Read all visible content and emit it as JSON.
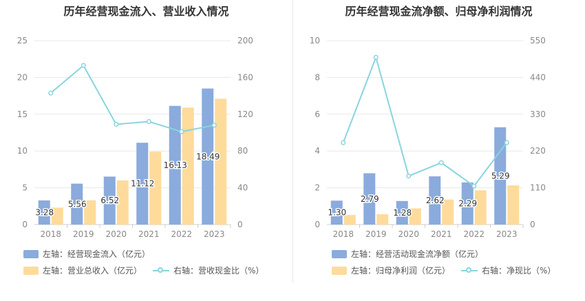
{
  "colors": {
    "blue": "#8aabdc",
    "yellow": "#fedb9b",
    "line": "#88d4de",
    "grid": "#e8e8e8",
    "axis_text": "#888888",
    "label_text": "#333333"
  },
  "left": {
    "title": "历年经营现金流入、营业收入情况",
    "legend": {
      "bar1": "左轴：经营现金流入（亿元）",
      "bar2": "左轴：营业总收入（亿元）",
      "line": "右轴：营收现金比（%）"
    },
    "chart_data": {
      "type": "bar",
      "categories": [
        "2018",
        "2019",
        "2020",
        "2021",
        "2022",
        "2023"
      ],
      "series": [
        {
          "name": "左轴：经营现金流入（亿元）",
          "axis": "left",
          "values": [
            3.28,
            5.56,
            6.52,
            11.12,
            16.13,
            18.49
          ],
          "labels": [
            "3.28",
            "5.56",
            "6.52",
            "11.12",
            "16.13",
            "18.49"
          ]
        },
        {
          "name": "左轴：营业总收入（亿元）",
          "axis": "left",
          "values": [
            2.3,
            3.3,
            6.0,
            9.9,
            15.9,
            17.1
          ]
        },
        {
          "name": "右轴：营收现金比（%）",
          "axis": "right",
          "type": "line",
          "values": [
            143,
            173,
            109,
            112,
            101,
            108
          ]
        }
      ],
      "yleft": {
        "min": 0,
        "max": 25,
        "ticks": [
          0,
          5,
          10,
          15,
          20,
          25
        ]
      },
      "yright": {
        "min": 0,
        "max": 200,
        "ticks": [
          0,
          40,
          80,
          120,
          160,
          200
        ]
      }
    }
  },
  "right": {
    "title": "历年经营现金流净额、归母净利润情况",
    "legend": {
      "bar1": "左轴：经营活动现金流净额（亿元）",
      "bar2": "左轴：归母净利润（亿元）",
      "line": "右轴：净现比（%）"
    },
    "chart_data": {
      "type": "bar",
      "categories": [
        "2018",
        "2019",
        "2020",
        "2021",
        "2022",
        "2023"
      ],
      "series": [
        {
          "name": "左轴：经营活动现金流净额（亿元）",
          "axis": "left",
          "values": [
            1.3,
            2.79,
            1.28,
            2.62,
            2.29,
            5.29
          ],
          "labels": [
            "1.30",
            "2.79",
            "1.28",
            "2.62",
            "2.29",
            "5.29"
          ]
        },
        {
          "name": "左轴：归母净利润（亿元）",
          "axis": "left",
          "values": [
            0.52,
            0.56,
            0.88,
            1.36,
            1.86,
            2.13
          ]
        },
        {
          "name": "右轴：净现比（%）",
          "axis": "right",
          "type": "line",
          "values": [
            245,
            500,
            145,
            185,
            115,
            245
          ]
        }
      ],
      "yleft": {
        "min": 0,
        "max": 10,
        "ticks": [
          0,
          2,
          4,
          6,
          8,
          10
        ]
      },
      "yright": {
        "min": 0,
        "max": 550,
        "ticks": [
          0,
          110,
          220,
          330,
          440,
          550
        ]
      }
    }
  }
}
